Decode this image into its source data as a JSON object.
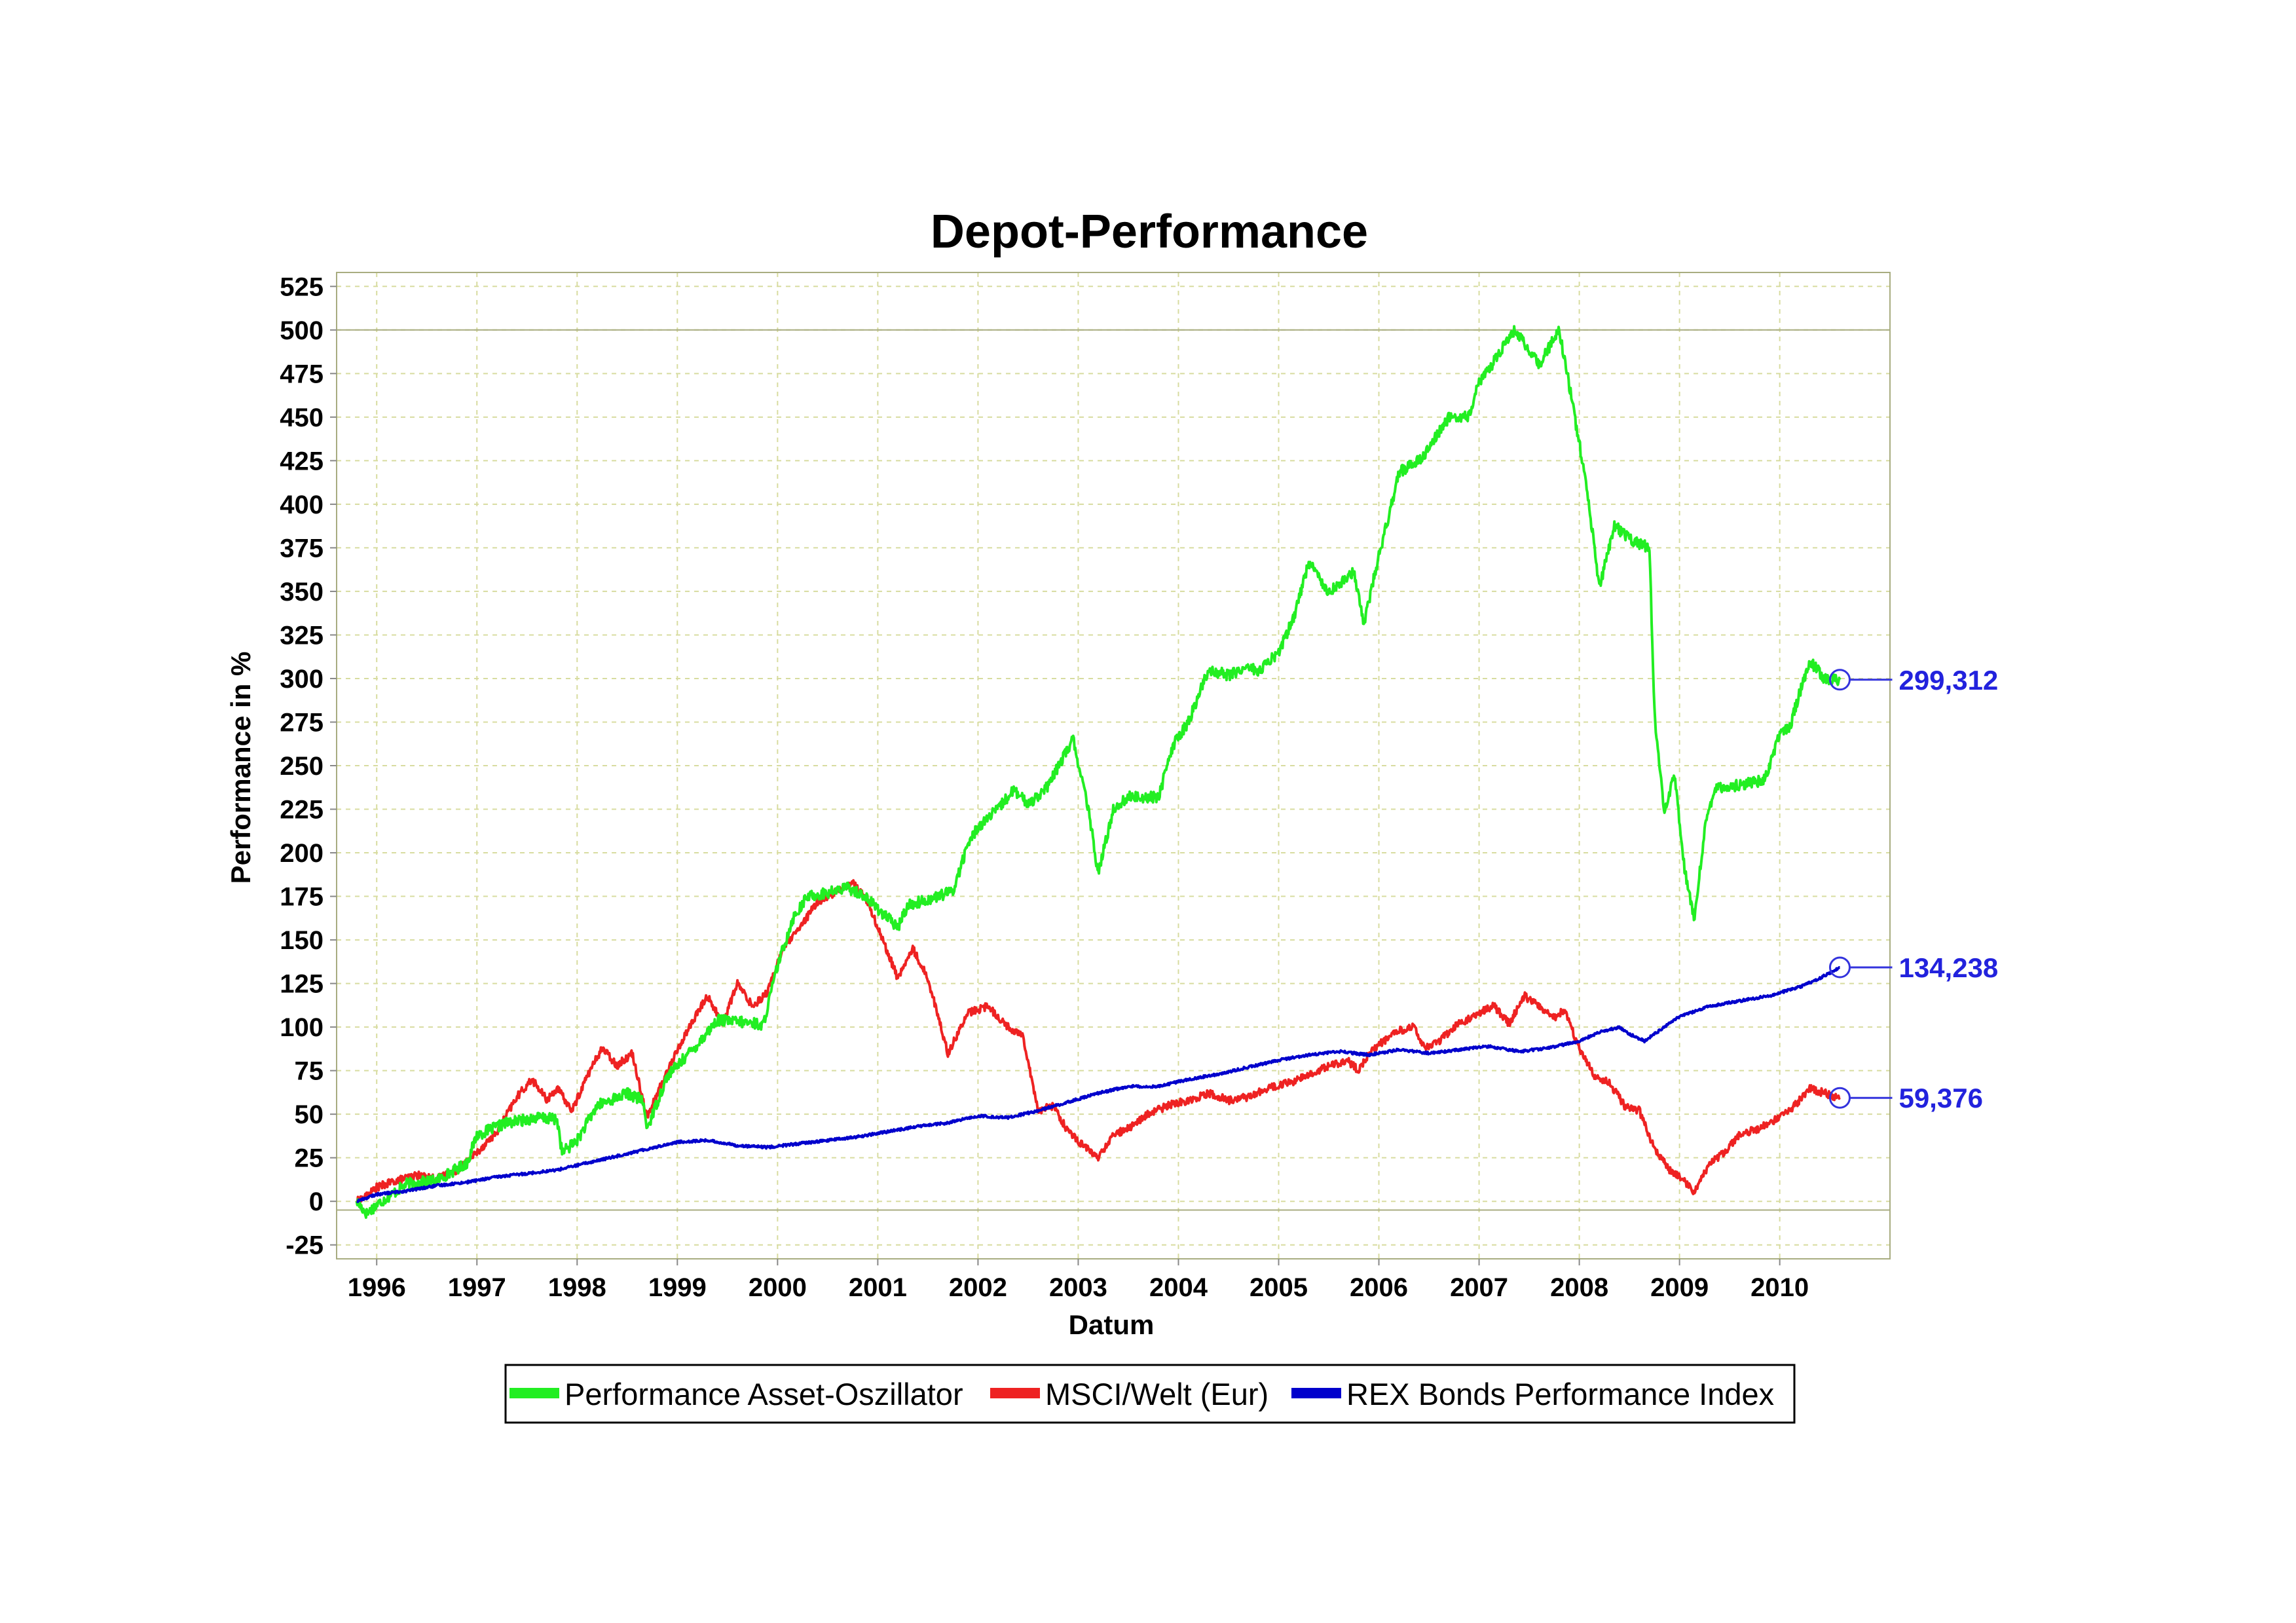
{
  "chart_data": {
    "type": "line",
    "title": "Depot-Performance",
    "xlabel": "Datum",
    "ylabel": "Performance in %",
    "xlim": [
      1995.6,
      2011.1
    ],
    "ylim": [
      -33,
      533
    ],
    "yticks": [
      -25,
      0,
      25,
      50,
      75,
      100,
      125,
      150,
      175,
      200,
      225,
      250,
      275,
      300,
      325,
      350,
      375,
      400,
      425,
      450,
      475,
      500,
      525
    ],
    "xticks": [
      1996,
      1997,
      1998,
      1999,
      2000,
      2001,
      2002,
      2003,
      2004,
      2005,
      2006,
      2007,
      2008,
      2009,
      2010
    ],
    "grid": true,
    "legend_position": "bottom",
    "colors": {
      "marker": "#3333dd",
      "label": "#2222dd",
      "grid": "#d8dca0",
      "frame": "#a8ac80"
    },
    "series": [
      {
        "name": "Performance Asset-Oszillator",
        "color": "#22ee22",
        "end_label": "299,312",
        "x": [
          1995.8,
          1995.9,
          1996.0,
          1996.3,
          1996.6,
          1996.9,
          1997.0,
          1997.3,
          1997.6,
          1997.8,
          1997.85,
          1998.0,
          1998.2,
          1998.5,
          1998.65,
          1998.7,
          1998.9,
          1999.2,
          1999.4,
          1999.6,
          1999.8,
          1999.85,
          2000.0,
          2000.15,
          2000.3,
          2000.5,
          2000.7,
          2000.85,
          2001.0,
          2001.2,
          2001.3,
          2001.5,
          2001.75,
          2001.9,
          2002.0,
          2002.2,
          2002.35,
          2002.5,
          2002.7,
          2002.85,
          2002.95,
          2003.1,
          2003.2,
          2003.35,
          2003.5,
          2003.8,
          2003.95,
          2004.1,
          2004.3,
          2004.5,
          2004.7,
          2004.8,
          2005.0,
          2005.15,
          2005.3,
          2005.5,
          2005.7,
          2005.75,
          2005.85,
          2006.0,
          2006.2,
          2006.45,
          2006.7,
          2006.9,
          2007.0,
          2007.15,
          2007.35,
          2007.6,
          2007.8,
          2007.9,
          2008.0,
          2008.1,
          2008.2,
          2008.35,
          2008.5,
          2008.7,
          2008.75,
          2008.85,
          2008.95,
          2009.05,
          2009.15,
          2009.25,
          2009.35,
          2009.5,
          2009.7,
          2009.85,
          2010.0,
          2010.1,
          2010.2,
          2010.3,
          2010.45,
          2010.6
        ],
        "y": [
          0,
          -7,
          -2,
          10,
          12,
          22,
          38,
          45,
          48,
          47,
          28,
          35,
          55,
          62,
          58,
          42,
          72,
          90,
          104,
          103,
          102,
          100,
          135,
          162,
          175,
          177,
          180,
          176,
          168,
          157,
          170,
          173,
          178,
          205,
          215,
          225,
          236,
          228,
          238,
          255,
          265,
          225,
          188,
          225,
          232,
          232,
          262,
          275,
          305,
          302,
          307,
          304,
          315,
          335,
          367,
          350,
          358,
          362,
          332,
          370,
          418,
          428,
          450,
          450,
          470,
          482,
          500,
          480,
          500,
          468,
          435,
          398,
          352,
          388,
          380,
          375,
          280,
          222,
          245,
          190,
          162,
          213,
          238,
          238,
          240,
          242,
          268,
          272,
          292,
          310,
          300,
          299.312
        ]
      },
      {
        "name": "MSCI/Welt (Eur)",
        "color": "#ee2222",
        "end_label": "59,376",
        "x": [
          1995.8,
          1995.9,
          1996.0,
          1996.2,
          1996.4,
          1996.6,
          1996.8,
          1997.0,
          1997.2,
          1997.4,
          1997.55,
          1997.7,
          1997.8,
          1997.95,
          1998.1,
          1998.25,
          1998.4,
          1998.55,
          1998.7,
          1998.75,
          1998.9,
          1999.1,
          1999.3,
          1999.45,
          1999.6,
          1999.75,
          1999.9,
          2000.05,
          2000.2,
          2000.4,
          2000.6,
          2000.75,
          2000.9,
          2001.05,
          2001.2,
          2001.35,
          2001.5,
          2001.7,
          2001.9,
          2002.1,
          2002.3,
          2002.45,
          2002.6,
          2002.75,
          2002.9,
          2003.05,
          2003.2,
          2003.35,
          2003.5,
          2003.7,
          2003.9,
          2004.1,
          2004.3,
          2004.5,
          2004.7,
          2004.9,
          2005.1,
          2005.3,
          2005.5,
          2005.7,
          2005.8,
          2005.9,
          2006.05,
          2006.2,
          2006.35,
          2006.45,
          2006.6,
          2006.8,
          2007.0,
          2007.15,
          2007.3,
          2007.45,
          2007.6,
          2007.75,
          2007.85,
          2008.0,
          2008.15,
          2008.3,
          2008.45,
          2008.6,
          2008.75,
          2008.9,
          2009.05,
          2009.15,
          2009.3,
          2009.45,
          2009.6,
          2009.8,
          2010.0,
          2010.15,
          2010.3,
          2010.45,
          2010.6
        ],
        "y": [
          0,
          3,
          8,
          12,
          15,
          13,
          18,
          28,
          40,
          60,
          70,
          58,
          65,
          52,
          72,
          88,
          78,
          85,
          48,
          55,
          75,
          98,
          118,
          102,
          125,
          112,
          120,
          145,
          155,
          172,
          178,
          183,
          172,
          150,
          128,
          145,
          128,
          85,
          108,
          112,
          100,
          95,
          52,
          55,
          40,
          32,
          25,
          38,
          42,
          50,
          55,
          58,
          62,
          58,
          60,
          65,
          68,
          72,
          78,
          80,
          75,
          85,
          92,
          98,
          100,
          88,
          92,
          102,
          108,
          112,
          102,
          118,
          112,
          105,
          110,
          88,
          72,
          68,
          55,
          52,
          30,
          18,
          12,
          5,
          22,
          28,
          38,
          42,
          48,
          55,
          65,
          62,
          59.376
        ]
      },
      {
        "name": "REX Bonds Performance Index",
        "color": "#0000cc",
        "end_label": "134,238",
        "x": [
          1995.8,
          1996.0,
          1996.3,
          1996.6,
          1996.9,
          1997.2,
          1997.5,
          1997.8,
          1998.1,
          1998.4,
          1998.7,
          1999.0,
          1999.3,
          1999.6,
          1999.9,
          2000.2,
          2000.5,
          2000.8,
          2001.1,
          2001.4,
          2001.7,
          2002.0,
          2002.3,
          2002.6,
          2002.9,
          2003.2,
          2003.5,
          2003.8,
          2004.1,
          2004.4,
          2004.7,
          2005.0,
          2005.3,
          2005.6,
          2005.9,
          2006.2,
          2006.5,
          2006.8,
          2007.1,
          2007.4,
          2007.7,
          2008.0,
          2008.2,
          2008.4,
          2008.5,
          2008.65,
          2008.8,
          2009.0,
          2009.3,
          2009.6,
          2009.9,
          2010.2,
          2010.4,
          2010.6
        ],
        "y": [
          0,
          4,
          6,
          9,
          11,
          14,
          16,
          18,
          22,
          26,
          30,
          34,
          35,
          32,
          31,
          33,
          35,
          37,
          40,
          43,
          45,
          49,
          48,
          52,
          57,
          62,
          66,
          66,
          70,
          73,
          77,
          81,
          84,
          86,
          84,
          87,
          85,
          87,
          89,
          86,
          88,
          92,
          97,
          100,
          96,
          92,
          98,
          106,
          112,
          115,
          118,
          123,
          128,
          134.238
        ]
      }
    ]
  }
}
